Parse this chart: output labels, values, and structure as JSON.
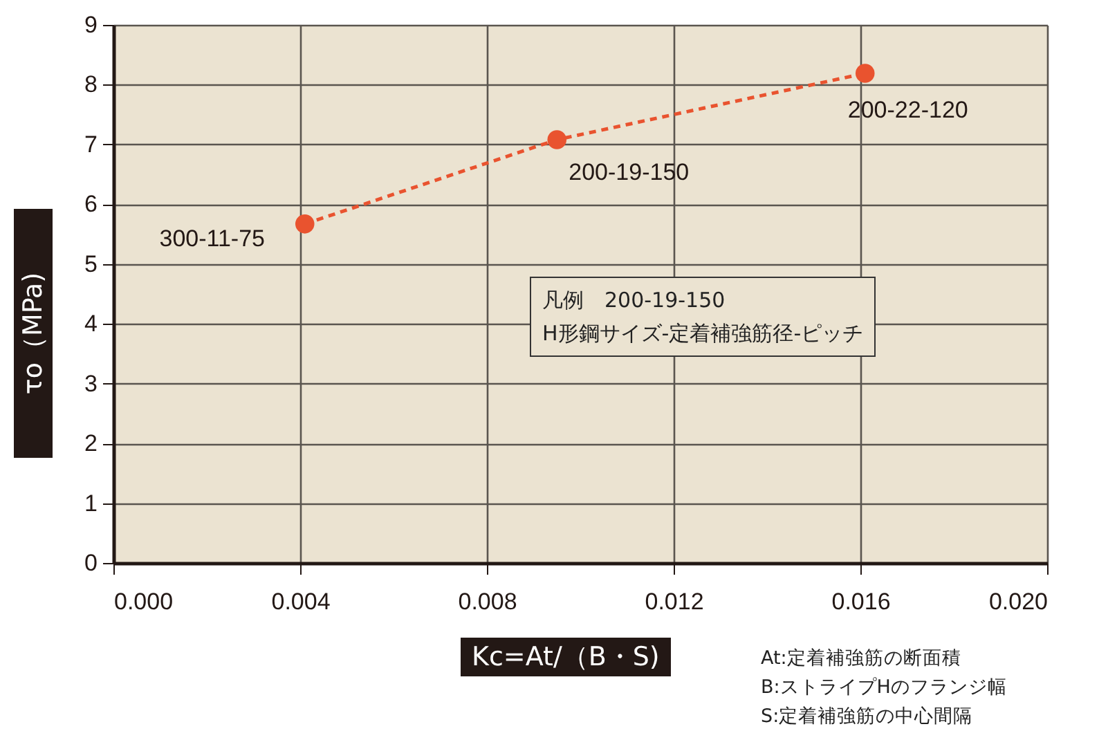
{
  "chart_data": {
    "type": "line",
    "xlabel": "Kc=At/（B・S)",
    "ylabel": "τo（MPa)",
    "x": [
      0.0041,
      0.0095,
      0.0161
    ],
    "series": [
      {
        "color": "#e9532f",
        "values": [
          5.67,
          7.08,
          8.19
        ]
      }
    ],
    "xlim": [
      0,
      0.02
    ],
    "ylim": [
      0,
      9
    ],
    "xticks": [
      {
        "value": 0,
        "label": "0.000"
      },
      {
        "value": 0.004,
        "label": "0.004"
      },
      {
        "value": 0.008,
        "label": "0.008"
      },
      {
        "value": 0.012,
        "label": "0.012"
      },
      {
        "value": 0.016,
        "label": "0.016"
      },
      {
        "value": 0.02,
        "label": "0.020"
      }
    ],
    "yticks": [
      0,
      1,
      2,
      3,
      4,
      5,
      6,
      7,
      8,
      9
    ],
    "grid": true,
    "marker": "circle",
    "line_style": "dashed",
    "annotations": [
      {
        "text": "300-11-75",
        "x": 0.0041,
        "y": 5.67
      },
      {
        "text": "200-19-150",
        "x": 0.0095,
        "y": 7.08
      },
      {
        "text": "200-22-120",
        "x": 0.0161,
        "y": 8.19
      },
      "凡例　200-19-150",
      "H形鋼サイズ-定着補強筋径-ピッチ",
      "At:定着補強筋の断面積",
      "B:ストライプHのフランジ幅",
      "S:定着補強筋の中心間隔"
    ]
  }
}
